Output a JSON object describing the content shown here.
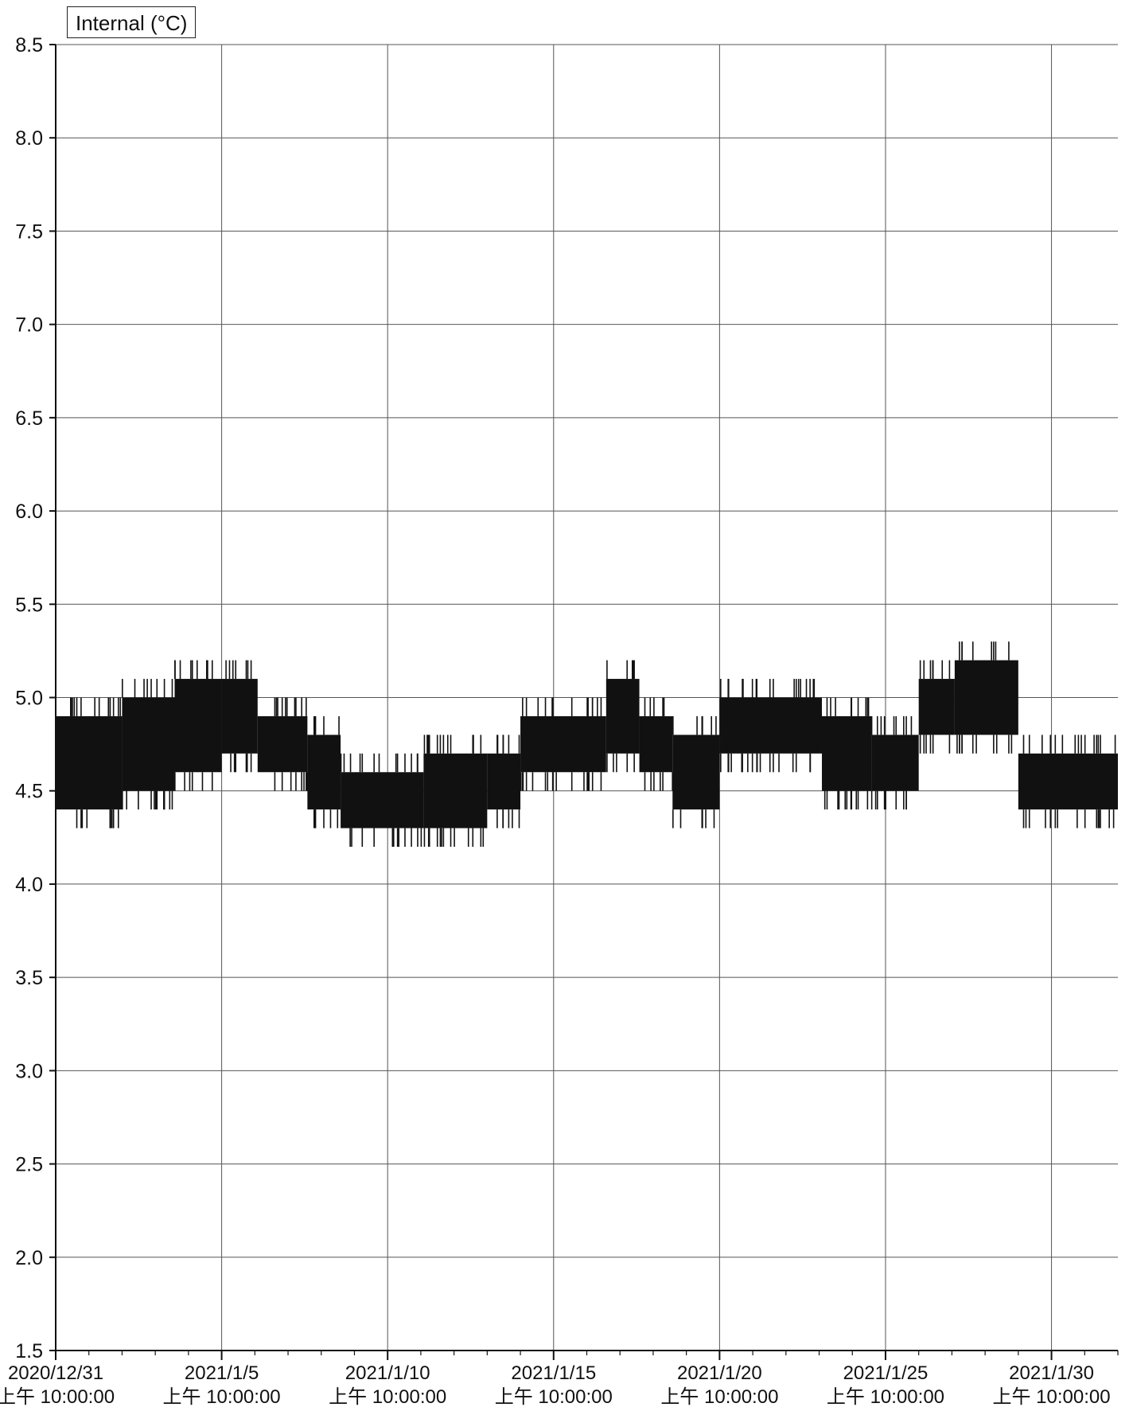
{
  "chart_data": {
    "type": "line",
    "title": "",
    "legend_label": "Internal (°C)",
    "legend_position": "top-left",
    "grid": true,
    "ylim": [
      1.5,
      8.5
    ],
    "y_ticks": [
      "8.5",
      "8.0",
      "7.5",
      "7.0",
      "6.5",
      "6.0",
      "5.5",
      "5.0",
      "4.5",
      "4.0",
      "3.5",
      "3.0",
      "2.5",
      "2.0",
      "1.5"
    ],
    "xlim": [
      "2020/12/31 10:00",
      "2021/2/1 10:00"
    ],
    "x_ticks": [
      {
        "date": "2020/12/31",
        "time": "上午 10:00:00"
      },
      {
        "date": "2021/1/5",
        "time": "上午 10:00:00"
      },
      {
        "date": "2021/1/10",
        "time": "上午 10:00:00"
      },
      {
        "date": "2021/1/15",
        "time": "上午 10:00:00"
      },
      {
        "date": "2021/1/20",
        "time": "上午 10:00:00"
      },
      {
        "date": "2021/1/25",
        "time": "上午 10:00:00"
      },
      {
        "date": "2021/1/30",
        "time": "上午 10:00:00"
      }
    ],
    "series": [
      {
        "name": "Internal (°C)",
        "color": "#111111",
        "note_values": "temperature oscillating within a band; min/max per segment",
        "segments": [
          {
            "start": "2020/12/31 10:00",
            "end": "2021/1/2 10:00",
            "low": 4.4,
            "high": 4.9
          },
          {
            "start": "2021/1/2 10:00",
            "end": "2021/1/4 00:00",
            "low": 4.5,
            "high": 5.0
          },
          {
            "start": "2021/1/4 00:00",
            "end": "2021/1/5 10:00",
            "low": 4.6,
            "high": 5.1
          },
          {
            "start": "2021/1/5 10:00",
            "end": "2021/1/6 12:00",
            "low": 4.7,
            "high": 5.1
          },
          {
            "start": "2021/1/6 12:00",
            "end": "2021/1/8 00:00",
            "low": 4.6,
            "high": 4.9
          },
          {
            "start": "2021/1/8 00:00",
            "end": "2021/1/9 00:00",
            "low": 4.4,
            "high": 4.8
          },
          {
            "start": "2021/1/9 00:00",
            "end": "2021/1/11 12:00",
            "low": 4.3,
            "high": 4.6
          },
          {
            "start": "2021/1/11 12:00",
            "end": "2021/1/13 10:00",
            "low": 4.3,
            "high": 4.7
          },
          {
            "start": "2021/1/13 10:00",
            "end": "2021/1/14 10:00",
            "low": 4.4,
            "high": 4.7
          },
          {
            "start": "2021/1/14 10:00",
            "end": "2021/1/17 00:00",
            "low": 4.6,
            "high": 4.9
          },
          {
            "start": "2021/1/17 00:00",
            "end": "2021/1/18 00:00",
            "low": 4.7,
            "high": 5.1
          },
          {
            "start": "2021/1/18 00:00",
            "end": "2021/1/19 00:00",
            "low": 4.6,
            "high": 4.9
          },
          {
            "start": "2021/1/19 00:00",
            "end": "2021/1/20 10:00",
            "low": 4.4,
            "high": 4.8
          },
          {
            "start": "2021/1/20 10:00",
            "end": "2021/1/23 12:00",
            "low": 4.7,
            "high": 5.0
          },
          {
            "start": "2021/1/23 12:00",
            "end": "2021/1/25 00:00",
            "low": 4.5,
            "high": 4.9
          },
          {
            "start": "2021/1/25 00:00",
            "end": "2021/1/26 10:00",
            "low": 4.5,
            "high": 4.8
          },
          {
            "start": "2021/1/26 10:00",
            "end": "2021/1/27 12:00",
            "low": 4.8,
            "high": 5.1
          },
          {
            "start": "2021/1/27 12:00",
            "end": "2021/1/29 10:00",
            "low": 4.8,
            "high": 5.2
          },
          {
            "start": "2021/1/29 10:00",
            "end": "2021/2/1 10:00",
            "low": 4.4,
            "high": 4.7
          }
        ]
      }
    ]
  }
}
